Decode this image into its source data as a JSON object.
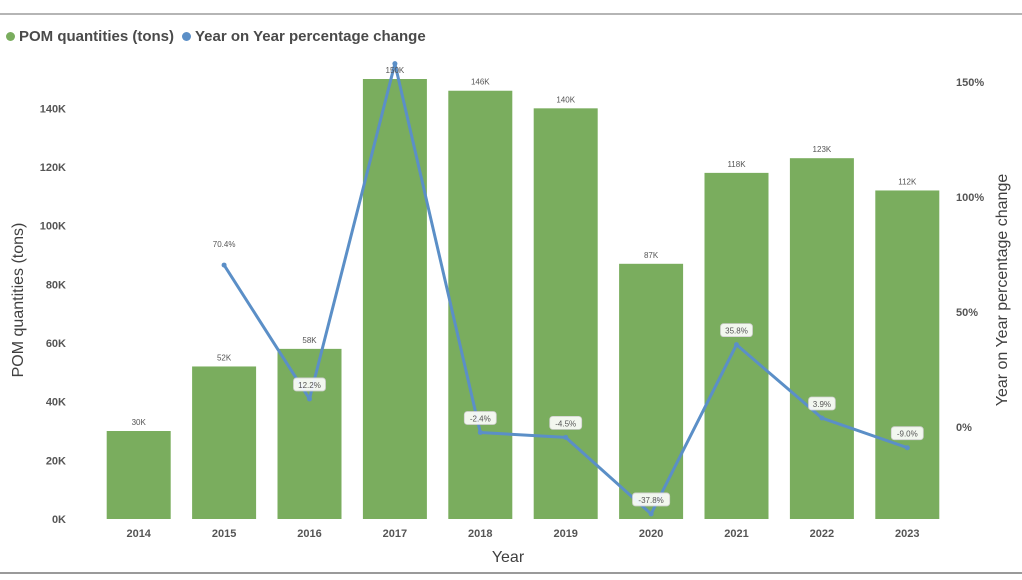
{
  "chart_data": {
    "type": "bar+line",
    "legend": [
      {
        "label": "POM quantities (tons)",
        "color": "#7aad5e"
      },
      {
        "label": "Year on Year  percentage change",
        "color": "#5b8fc7"
      }
    ],
    "categories": [
      "2014",
      "2015",
      "2016",
      "2017",
      "2018",
      "2019",
      "2020",
      "2021",
      "2022",
      "2023"
    ],
    "series": [
      {
        "name": "POM quantities (tons)",
        "type": "bar",
        "axis": "left",
        "values": [
          30000,
          52000,
          58000,
          150000,
          146000,
          140000,
          87000,
          118000,
          123000,
          112000
        ],
        "labels": [
          "30K",
          "52K",
          "58K",
          "150K",
          "146K",
          "140K",
          "87K",
          "118K",
          "123K",
          "112K"
        ]
      },
      {
        "name": "Year on Year  percentage change",
        "type": "line",
        "axis": "right",
        "values": [
          null,
          70.4,
          12.2,
          158.0,
          -2.4,
          -4.5,
          -37.8,
          35.8,
          3.9,
          -9.0
        ],
        "labels": [
          "",
          "70.4%",
          "12.2%",
          "",
          "-2.4%",
          "-4.5%",
          "-37.8%",
          "35.8%",
          "3.9%",
          "-9.0%"
        ]
      }
    ],
    "xlabel": "Year",
    "ylabel": "POM quantities (tons)",
    "y2label": "Year on Year percentage change",
    "ylim": [
      0,
      150000
    ],
    "yticks": [
      0,
      20000,
      40000,
      60000,
      80000,
      100000,
      120000,
      140000
    ],
    "ytick_labels": [
      "0K",
      "20K",
      "40K",
      "60K",
      "80K",
      "100K",
      "120K",
      "140K"
    ],
    "y2lim": [
      -40,
      160
    ],
    "y2ticks": [
      0,
      50,
      100,
      150
    ],
    "y2tick_labels": [
      "0%",
      "50%",
      "100%",
      "150%"
    ],
    "grid": false,
    "legend_position": "top-left",
    "colors": {
      "bar": "#7aad5e",
      "line": "#5b8fc7",
      "text": "#404040",
      "tick": "#555555"
    }
  }
}
